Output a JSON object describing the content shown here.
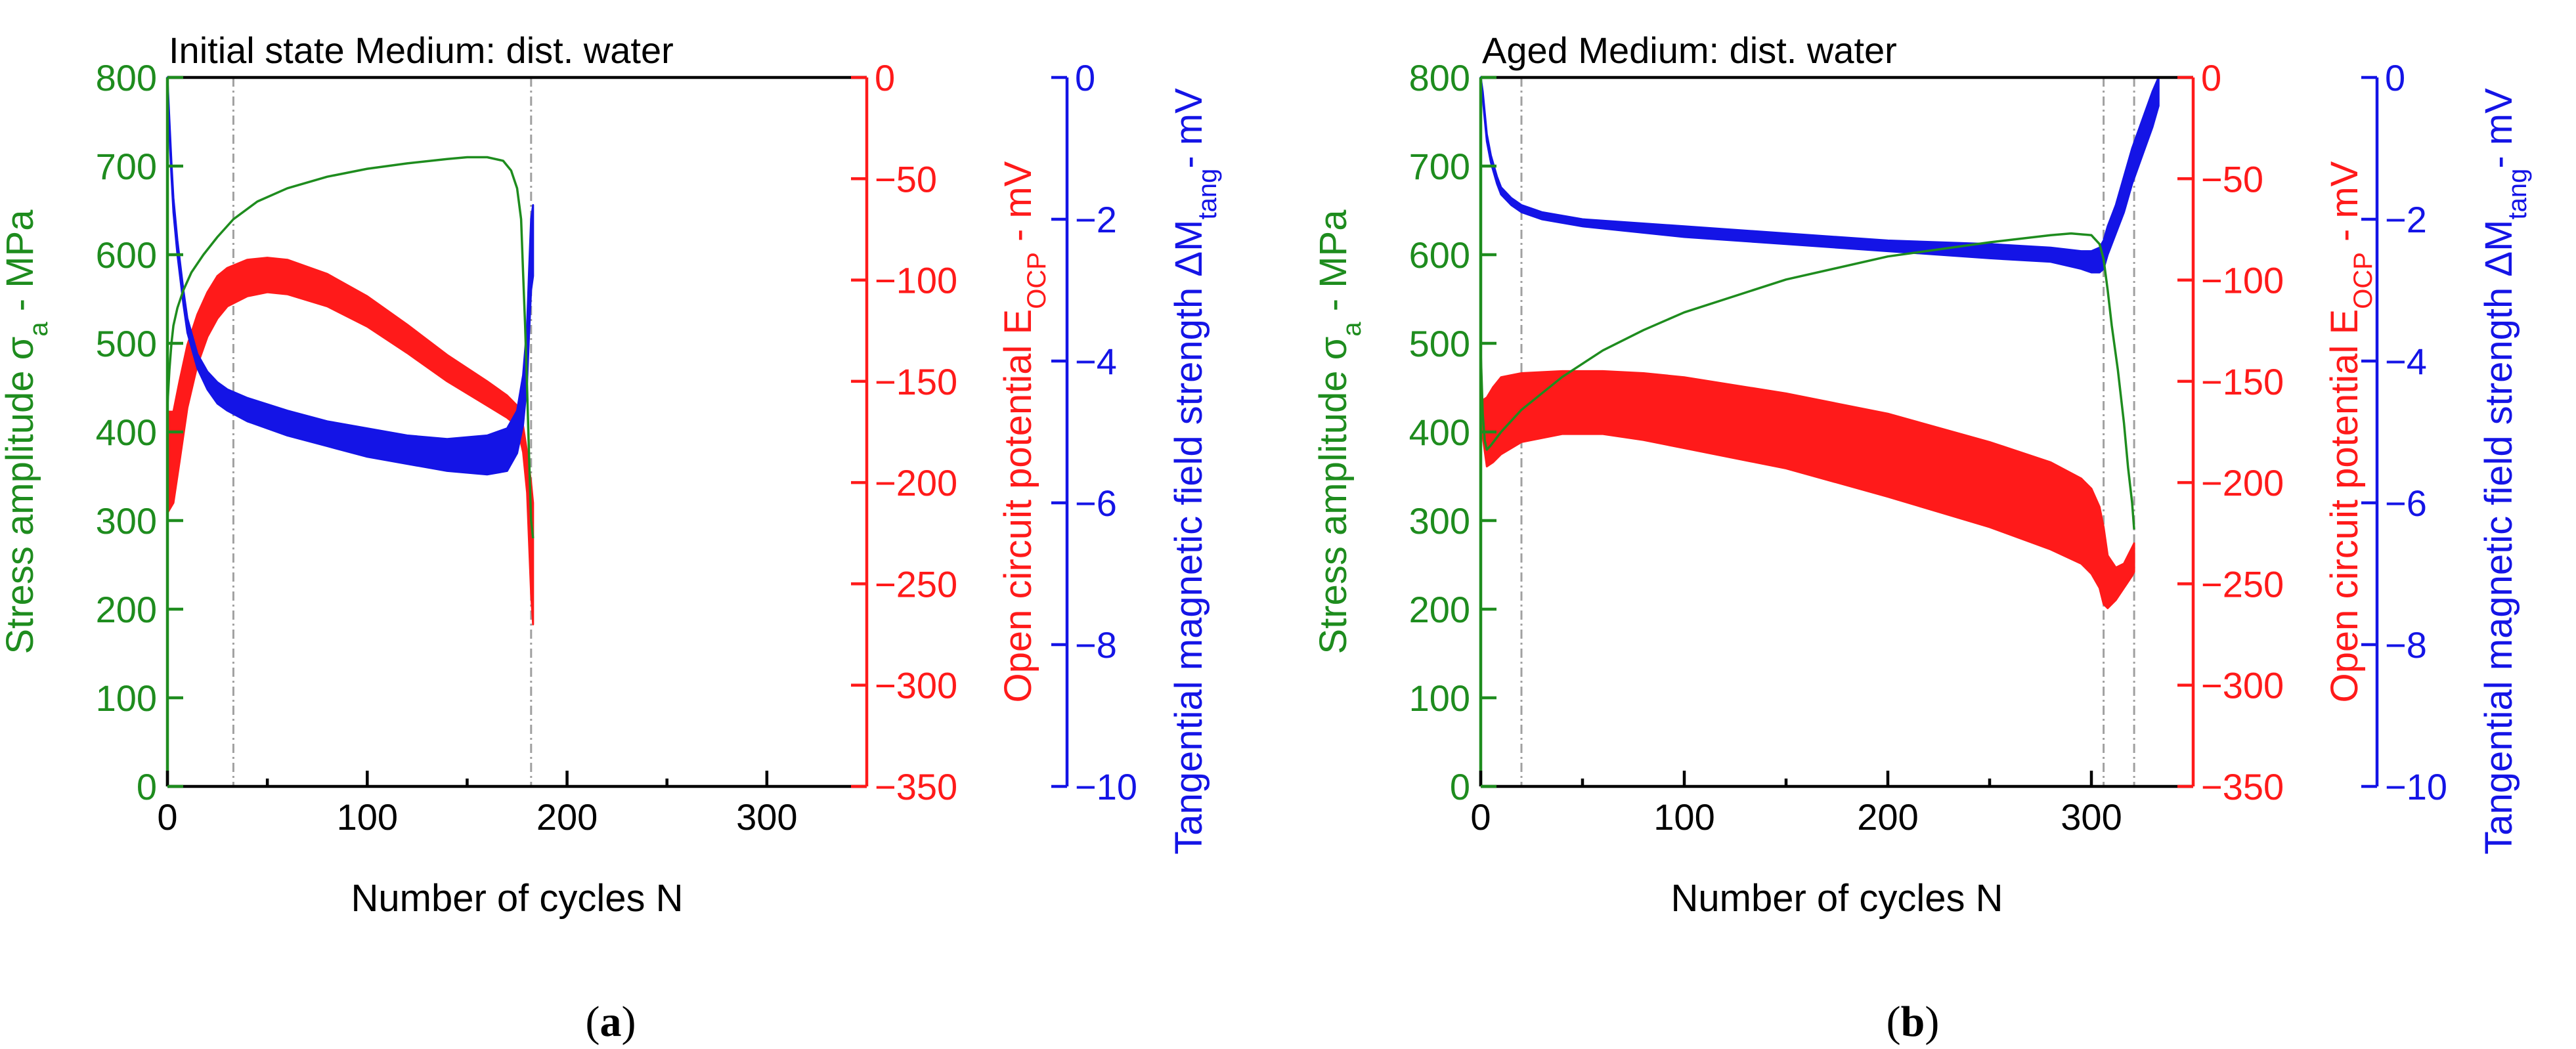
{
  "figure": {
    "caption_a_letter": "a",
    "caption_b_letter": "b"
  },
  "colors": {
    "stress": "#1e8c1e",
    "ocp": "#ff1a1a",
    "magnetic": "#1414e6",
    "axis": "#000000",
    "vline": "#a0a0a0"
  },
  "chart_data": [
    {
      "type": "line",
      "panel": "a",
      "title": "Initial state  Medium: dist. water",
      "xlabel": "Number of cycles N",
      "xlim": [
        0,
        350
      ],
      "xticks": [
        0,
        100,
        200,
        300
      ],
      "axes": {
        "left": {
          "label": "Stress amplitude σa - MPa",
          "label_main": "Stress amplitude σ",
          "label_sub": "a",
          "label_tail": " - MPa",
          "lim": [
            0,
            800
          ],
          "ticks": [
            0,
            100,
            200,
            300,
            400,
            500,
            600,
            700,
            800
          ]
        },
        "right1": {
          "label": "Open circuit potential EOCP - mV",
          "label_main": "Open circuit potential E",
          "label_sub": "OCP",
          "label_tail": " - mV",
          "lim": [
            -350,
            0
          ],
          "ticks": [
            0,
            -50,
            -100,
            -150,
            -200,
            -250,
            -300,
            -350
          ]
        },
        "right2": {
          "label": "Tangential magnetic field strength ΔMtang- mV",
          "label_main": "Tangential magnetic field strength ΔM",
          "label_sub": "tang",
          "label_tail": "- mV",
          "lim": [
            -10,
            0
          ],
          "ticks": [
            0,
            -2,
            -4,
            -6,
            -8,
            -10
          ]
        }
      },
      "vlines": [
        33,
        182
      ],
      "series": [
        {
          "name": "Stress amplitude",
          "axis": "left",
          "x": [
            0,
            1,
            2,
            3,
            5,
            8,
            12,
            18,
            25,
            33,
            45,
            60,
            80,
            100,
            120,
            140,
            150,
            160,
            168,
            172,
            175,
            177,
            178,
            179,
            180,
            181,
            182,
            183
          ],
          "y": [
            430,
            470,
            500,
            520,
            540,
            560,
            580,
            600,
            620,
            640,
            660,
            675,
            688,
            697,
            703,
            708,
            710,
            710,
            706,
            695,
            675,
            640,
            580,
            520,
            450,
            370,
            300,
            280
          ]
        },
        {
          "name": "Open circuit potential (upper envelope)",
          "axis": "right1",
          "x": [
            0,
            3,
            6,
            10,
            15,
            20,
            25,
            30,
            40,
            50,
            60,
            80,
            100,
            120,
            140,
            160,
            170,
            175,
            178,
            180,
            182,
            183
          ],
          "y": [
            -165,
            -165,
            -150,
            -132,
            -117,
            -106,
            -98,
            -94,
            -90,
            -89,
            -90,
            -97,
            -108,
            -122,
            -137,
            -150,
            -157,
            -162,
            -172,
            -185,
            -200,
            -210
          ]
        },
        {
          "name": "Open circuit potential (lower envelope)",
          "axis": "right1",
          "x": [
            0,
            3,
            6,
            10,
            15,
            20,
            25,
            30,
            40,
            50,
            60,
            80,
            100,
            120,
            140,
            160,
            170,
            175,
            178,
            180,
            182,
            183
          ],
          "y": [
            -215,
            -210,
            -190,
            -163,
            -142,
            -128,
            -119,
            -113,
            -108,
            -106,
            -107,
            -113,
            -123,
            -136,
            -150,
            -162,
            -168,
            -172,
            -185,
            -205,
            -255,
            -270
          ]
        },
        {
          "name": "Tangential magnetic field (upper envelope)",
          "axis": "right2",
          "x": [
            0,
            1,
            2,
            3,
            5,
            8,
            10,
            15,
            20,
            25,
            30,
            40,
            60,
            80,
            100,
            120,
            140,
            160,
            170,
            175,
            178,
            180,
            181,
            182,
            183
          ],
          "y": [
            0,
            -0.6,
            -1.2,
            -1.7,
            -2.3,
            -3.0,
            -3.4,
            -3.9,
            -4.15,
            -4.3,
            -4.4,
            -4.52,
            -4.7,
            -4.85,
            -4.95,
            -5.05,
            -5.1,
            -5.05,
            -4.95,
            -4.7,
            -4.2,
            -3.5,
            -2.7,
            -2.0,
            -1.8
          ]
        },
        {
          "name": "Tangential magnetic field (lower envelope)",
          "axis": "right2",
          "x": [
            0,
            1,
            2,
            3,
            5,
            8,
            10,
            15,
            20,
            25,
            30,
            40,
            60,
            80,
            100,
            120,
            140,
            160,
            170,
            175,
            178,
            180,
            181,
            182,
            183
          ],
          "y": [
            -0.1,
            -0.8,
            -1.4,
            -1.9,
            -2.5,
            -3.2,
            -3.6,
            -4.1,
            -4.4,
            -4.6,
            -4.7,
            -4.85,
            -5.05,
            -5.2,
            -5.35,
            -5.45,
            -5.55,
            -5.6,
            -5.55,
            -5.3,
            -4.9,
            -4.3,
            -3.6,
            -3.0,
            -2.8
          ]
        }
      ]
    },
    {
      "type": "line",
      "panel": "b",
      "title": "Aged  Medium: dist. water",
      "xlabel": "Number of cycles N",
      "xlim": [
        0,
        350
      ],
      "xticks": [
        0,
        100,
        200,
        300
      ],
      "axes": {
        "left": {
          "label": "Stress amplitude σa - MPa",
          "label_main": "Stress amplitude σ",
          "label_sub": "a",
          "label_tail": " - MPa",
          "lim": [
            0,
            800
          ],
          "ticks": [
            0,
            100,
            200,
            300,
            400,
            500,
            600,
            700,
            800
          ]
        },
        "right1": {
          "label": "Open circuit potential EOCP - mV",
          "label_main": "Open circuit potential E",
          "label_sub": "OCP",
          "label_tail": " - mV",
          "lim": [
            -350,
            0
          ],
          "ticks": [
            0,
            -50,
            -100,
            -150,
            -200,
            -250,
            -300,
            -350
          ]
        },
        "right2": {
          "label": "Tangential magnetic field strength ΔMtang- mV",
          "label_main": "Tangential magnetic field strength ΔM",
          "label_sub": "tang",
          "label_tail": "- mV",
          "lim": [
            -10,
            0
          ],
          "ticks": [
            0,
            -2,
            -4,
            -6,
            -8,
            -10
          ]
        }
      },
      "vlines": [
        20,
        306,
        321
      ],
      "series": [
        {
          "name": "Stress amplitude",
          "axis": "left",
          "x": [
            0,
            1,
            2,
            3,
            5,
            10,
            20,
            40,
            60,
            80,
            100,
            150,
            200,
            250,
            280,
            290,
            300,
            304,
            306,
            308,
            310,
            313,
            316,
            318,
            320,
            321
          ],
          "y": [
            490,
            420,
            390,
            380,
            385,
            400,
            425,
            462,
            492,
            515,
            535,
            572,
            598,
            614,
            622,
            624,
            622,
            612,
            595,
            560,
            520,
            470,
            410,
            360,
            320,
            290
          ]
        },
        {
          "name": "Open circuit potential (upper envelope)",
          "axis": "right1",
          "x": [
            0,
            3,
            6,
            10,
            20,
            40,
            60,
            80,
            100,
            150,
            200,
            250,
            280,
            295,
            300,
            304,
            306,
            308,
            312,
            316,
            320,
            321
          ],
          "y": [
            -160,
            -158,
            -153,
            -148,
            -146,
            -145,
            -145,
            -146,
            -148,
            -156,
            -166,
            -180,
            -190,
            -198,
            -203,
            -212,
            -222,
            -236,
            -242,
            -240,
            -232,
            -230
          ]
        },
        {
          "name": "Open circuit potential (lower envelope)",
          "axis": "right1",
          "x": [
            0,
            3,
            6,
            10,
            20,
            40,
            60,
            80,
            100,
            150,
            200,
            250,
            280,
            295,
            300,
            304,
            306,
            308,
            312,
            316,
            320,
            321
          ],
          "y": [
            -170,
            -192,
            -190,
            -186,
            -180,
            -176,
            -176,
            -179,
            -183,
            -193,
            -207,
            -222,
            -233,
            -240,
            -245,
            -252,
            -260,
            -262,
            -258,
            -252,
            -246,
            -244
          ]
        },
        {
          "name": "Tangential magnetic field (upper envelope)",
          "axis": "right2",
          "x": [
            0,
            1,
            2,
            3,
            5,
            8,
            10,
            15,
            20,
            30,
            50,
            100,
            150,
            200,
            250,
            280,
            295,
            300,
            304,
            306,
            308,
            312,
            316,
            320,
            325,
            330,
            333
          ],
          "y": [
            0,
            -0.2,
            -0.5,
            -0.8,
            -1.1,
            -1.4,
            -1.55,
            -1.7,
            -1.8,
            -1.9,
            -2.0,
            -2.1,
            -2.2,
            -2.3,
            -2.35,
            -2.4,
            -2.45,
            -2.45,
            -2.4,
            -2.3,
            -2.1,
            -1.8,
            -1.4,
            -1.0,
            -0.6,
            -0.2,
            0
          ]
        },
        {
          "name": "Tangential magnetic field (lower envelope)",
          "axis": "right2",
          "x": [
            0,
            1,
            2,
            3,
            5,
            8,
            10,
            15,
            20,
            30,
            50,
            100,
            150,
            200,
            250,
            280,
            295,
            300,
            304,
            306,
            308,
            312,
            316,
            320,
            325,
            330,
            333
          ],
          "y": [
            -0.1,
            -0.3,
            -0.6,
            -0.9,
            -1.2,
            -1.5,
            -1.65,
            -1.8,
            -1.9,
            -2.0,
            -2.1,
            -2.25,
            -2.35,
            -2.45,
            -2.55,
            -2.6,
            -2.7,
            -2.75,
            -2.75,
            -2.7,
            -2.5,
            -2.2,
            -1.9,
            -1.5,
            -1.1,
            -0.7,
            -0.4
          ]
        }
      ]
    }
  ]
}
